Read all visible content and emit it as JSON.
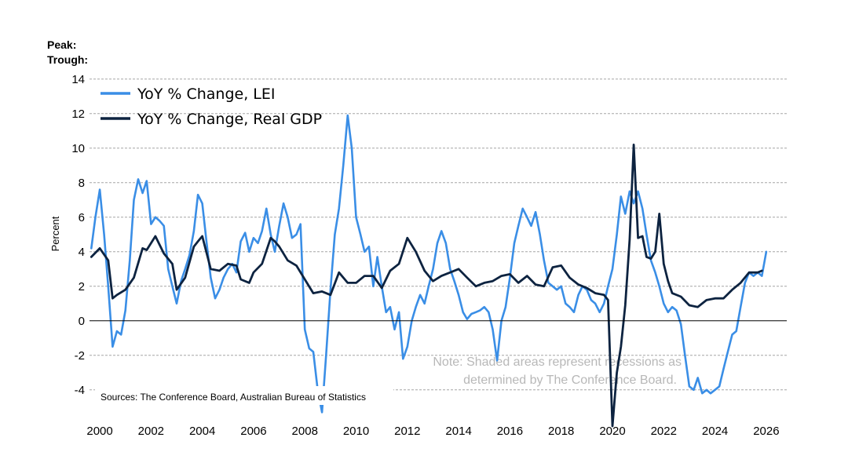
{
  "chart_data": {
    "type": "line",
    "title": "",
    "peak_label": "Peak:",
    "trough_label": "Trough:",
    "ylabel": "Percent",
    "xlabel": "",
    "ylim": [
      -5.6,
      14.4
    ],
    "xlim": [
      1999.6,
      2026.8
    ],
    "yticks": [
      14,
      12,
      10,
      8,
      6,
      4,
      2,
      0,
      -2,
      -4
    ],
    "xticks": [
      2000,
      2002,
      2004,
      2006,
      2008,
      2010,
      2012,
      2014,
      2016,
      2018,
      2020,
      2022,
      2024,
      2026
    ],
    "grid": true,
    "legend_position": "top-left",
    "note": [
      "Note: Shaded areas represent recessions as",
      "determined by The Conference Board."
    ],
    "source": "Sources: The Conference Board, Australian Bureau of Statistics",
    "series": [
      {
        "name": "YoY % Change, LEI",
        "color": "#3a8ee6",
        "x": [
          1999.67,
          1999.83,
          2000.0,
          2000.17,
          2000.33,
          2000.5,
          2000.67,
          2000.83,
          2001.0,
          2001.17,
          2001.33,
          2001.5,
          2001.67,
          2001.83,
          2002.0,
          2002.17,
          2002.33,
          2002.5,
          2002.67,
          2002.83,
          2003.0,
          2003.17,
          2003.33,
          2003.5,
          2003.67,
          2003.83,
          2004.0,
          2004.17,
          2004.33,
          2004.5,
          2004.67,
          2004.83,
          2005.0,
          2005.17,
          2005.33,
          2005.5,
          2005.67,
          2005.83,
          2006.0,
          2006.17,
          2006.33,
          2006.5,
          2006.67,
          2006.83,
          2007.0,
          2007.17,
          2007.33,
          2007.5,
          2007.67,
          2007.83,
          2008.0,
          2008.17,
          2008.33,
          2008.5,
          2008.67,
          2008.83,
          2009.0,
          2009.17,
          2009.33,
          2009.5,
          2009.67,
          2009.83,
          2010.0,
          2010.17,
          2010.33,
          2010.5,
          2010.67,
          2010.83,
          2011.0,
          2011.17,
          2011.33,
          2011.5,
          2011.67,
          2011.83,
          2012.0,
          2012.17,
          2012.33,
          2012.5,
          2012.67,
          2012.83,
          2013.0,
          2013.17,
          2013.33,
          2013.5,
          2013.67,
          2013.83,
          2014.0,
          2014.17,
          2014.33,
          2014.5,
          2014.67,
          2014.83,
          2015.0,
          2015.17,
          2015.33,
          2015.5,
          2015.67,
          2015.83,
          2016.0,
          2016.17,
          2016.33,
          2016.5,
          2016.67,
          2016.83,
          2017.0,
          2017.17,
          2017.33,
          2017.5,
          2017.67,
          2017.83,
          2018.0,
          2018.17,
          2018.33,
          2018.5,
          2018.67,
          2018.83,
          2019.0,
          2019.17,
          2019.33,
          2019.5,
          2019.67,
          2019.83,
          2020.0,
          2020.17,
          2020.33,
          2020.5,
          2020.67,
          2020.83,
          2021.0,
          2021.17,
          2021.33,
          2021.5,
          2021.67,
          2021.83,
          2022.0,
          2022.17,
          2022.33,
          2022.5,
          2022.67,
          2022.83,
          2023.0,
          2023.17,
          2023.33,
          2023.5,
          2023.67,
          2023.83,
          2024.0,
          2024.17,
          2024.33,
          2024.5,
          2024.67,
          2024.83,
          2025.0,
          2025.17,
          2025.33,
          2025.5,
          2025.67,
          2025.83,
          2026.0
        ],
        "values": [
          4.2,
          6.0,
          7.6,
          5.0,
          2.0,
          -1.5,
          -0.6,
          -0.8,
          0.6,
          3.5,
          7.0,
          8.2,
          7.4,
          8.1,
          5.6,
          6.0,
          5.8,
          5.5,
          3.0,
          2.0,
          1.0,
          2.3,
          3.0,
          3.8,
          5.2,
          7.3,
          6.8,
          4.5,
          2.5,
          1.3,
          1.8,
          2.5,
          3.0,
          3.3,
          2.8,
          4.6,
          5.1,
          4.0,
          4.8,
          4.5,
          5.2,
          6.5,
          5.0,
          4.0,
          5.5,
          6.8,
          6.0,
          4.8,
          5.0,
          5.6,
          -0.5,
          -1.6,
          -1.8,
          -4.0,
          -5.3,
          -2.0,
          1.8,
          5.0,
          6.5,
          9.0,
          11.9,
          10.0,
          6.0,
          5.0,
          4.0,
          4.3,
          2.0,
          3.7,
          2.0,
          0.5,
          0.8,
          -0.5,
          0.5,
          -2.2,
          -1.5,
          0.0,
          0.8,
          1.5,
          1.0,
          2.0,
          3.0,
          4.5,
          5.2,
          4.5,
          3.0,
          2.3,
          1.5,
          0.5,
          0.1,
          0.4,
          0.5,
          0.6,
          0.8,
          0.5,
          -0.5,
          -2.3,
          0.0,
          0.8,
          2.5,
          4.5,
          5.5,
          6.5,
          6.0,
          5.5,
          6.3,
          5.0,
          3.5,
          2.2,
          2.0,
          1.8,
          2.0,
          1.0,
          0.8,
          0.5,
          1.5,
          2.0,
          1.8,
          1.2,
          1.0,
          0.5,
          1.0,
          2.0,
          3.0,
          5.0,
          7.2,
          6.2,
          7.5,
          6.8,
          7.5,
          6.5,
          5.0,
          3.5,
          2.8,
          2.0,
          1.0,
          0.5,
          0.8,
          0.6,
          -0.2,
          -2.0,
          -3.8,
          -4.0,
          -3.3,
          -4.2,
          -4.0,
          -4.2,
          -4.0,
          -3.8,
          -2.8,
          -1.8,
          -0.8,
          -0.6,
          0.8,
          2.2,
          2.8,
          2.6,
          2.8,
          2.6,
          4.0
        ]
      },
      {
        "name": "YoY % Change, Real GDP",
        "color": "#0d2340",
        "x": [
          1999.67,
          2000.0,
          2000.33,
          2000.5,
          2000.67,
          2001.0,
          2001.33,
          2001.67,
          2001.83,
          2002.17,
          2002.5,
          2002.83,
          2003.0,
          2003.33,
          2003.67,
          2003.83,
          2004.0,
          2004.33,
          2004.67,
          2005.0,
          2005.33,
          2005.5,
          2005.83,
          2006.0,
          2006.33,
          2006.67,
          2006.83,
          2007.0,
          2007.33,
          2007.67,
          2008.0,
          2008.33,
          2008.67,
          2009.0,
          2009.33,
          2009.67,
          2010.0,
          2010.33,
          2010.67,
          2011.0,
          2011.33,
          2011.67,
          2012.0,
          2012.33,
          2012.67,
          2013.0,
          2013.33,
          2013.67,
          2014.0,
          2014.33,
          2014.67,
          2015.0,
          2015.33,
          2015.67,
          2016.0,
          2016.33,
          2016.67,
          2017.0,
          2017.33,
          2017.67,
          2018.0,
          2018.33,
          2018.67,
          2019.0,
          2019.33,
          2019.67,
          2019.83,
          2020.0,
          2020.17,
          2020.33,
          2020.5,
          2020.67,
          2020.83,
          2021.0,
          2021.17,
          2021.33,
          2021.5,
          2021.67,
          2021.83,
          2022.0,
          2022.17,
          2022.33,
          2022.67,
          2023.0,
          2023.33,
          2023.67,
          2024.0,
          2024.33,
          2024.67,
          2025.0,
          2025.33,
          2025.67,
          2025.83
        ],
        "values": [
          3.7,
          4.2,
          3.5,
          1.3,
          1.5,
          1.8,
          2.5,
          4.2,
          4.1,
          4.9,
          3.9,
          3.3,
          1.8,
          2.5,
          4.3,
          4.6,
          4.9,
          3.0,
          2.9,
          3.3,
          3.2,
          2.4,
          2.2,
          2.8,
          3.3,
          4.8,
          4.6,
          4.3,
          3.5,
          3.2,
          2.4,
          1.6,
          1.7,
          1.5,
          2.8,
          2.2,
          2.2,
          2.6,
          2.6,
          1.9,
          2.9,
          3.3,
          4.8,
          4.0,
          2.9,
          2.3,
          2.6,
          2.8,
          3.0,
          2.5,
          2.0,
          2.2,
          2.3,
          2.6,
          2.7,
          2.2,
          2.6,
          2.1,
          2.0,
          3.1,
          3.2,
          2.5,
          2.1,
          1.9,
          1.6,
          1.5,
          1.2,
          -6.1,
          -3.0,
          -1.5,
          0.9,
          4.7,
          10.2,
          4.8,
          4.9,
          3.7,
          3.6,
          4.0,
          6.2,
          3.3,
          2.3,
          1.6,
          1.4,
          0.9,
          0.8,
          1.2,
          1.3,
          1.3,
          1.8,
          2.2,
          2.8,
          2.8,
          2.9
        ]
      }
    ]
  }
}
